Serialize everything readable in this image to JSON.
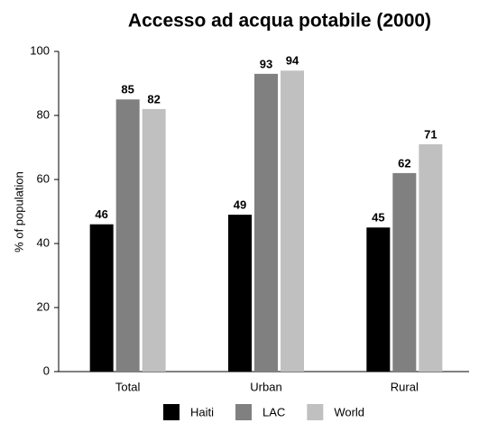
{
  "chart_data": {
    "type": "bar",
    "title": "Accesso ad acqua potabile (2000)",
    "y_label": "% of population",
    "categories": [
      "Total",
      "Urban",
      "Rural"
    ],
    "series": [
      {
        "name": "Haiti",
        "color": "#000000",
        "values": [
          46,
          49,
          45
        ]
      },
      {
        "name": "LAC",
        "color": "#808080",
        "values": [
          85,
          93,
          62
        ]
      },
      {
        "name": "World",
        "color": "#c0c0c0",
        "values": [
          82,
          94,
          71
        ]
      }
    ],
    "ylim": [
      0,
      100
    ],
    "yticks": [
      0,
      20,
      40,
      60,
      80,
      100
    ],
    "grid": false,
    "legend": "bottom"
  }
}
